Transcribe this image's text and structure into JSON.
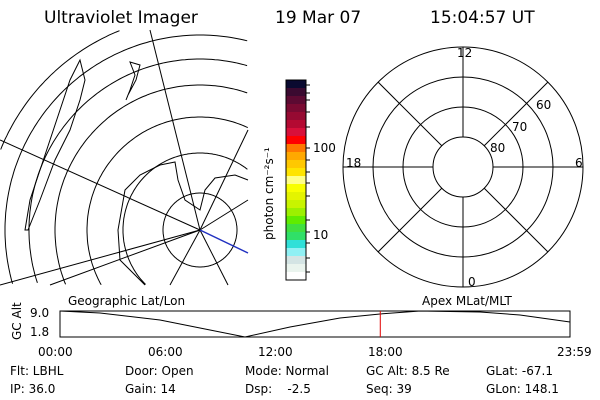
{
  "header": {
    "title": "Ultraviolet Imager",
    "date": "19 Mar 07",
    "time": "15:04:57 UT"
  },
  "colorbar": {
    "label": "photon cm⁻²s⁻¹",
    "ticks": [
      "100",
      "10"
    ],
    "colors": [
      "#0a0a30",
      "#3a0a30",
      "#5c0a32",
      "#7a0a32",
      "#960a32",
      "#b40a32",
      "#d8103a",
      "#ff0000",
      "#ff7800",
      "#ffa800",
      "#ffc800",
      "#ffe400",
      "#ffff88",
      "#f8ff00",
      "#e4f400",
      "#c8f400",
      "#9cf000",
      "#60ec00",
      "#40e040",
      "#30e068",
      "#30e0d8",
      "#90f0f4",
      "#d4e4e4",
      "#eaf4ee",
      "#ffffff"
    ]
  },
  "polar": {
    "mlt_labels": [
      "12",
      "18",
      "6",
      "0"
    ],
    "lat_labels": [
      "60",
      "70",
      "80"
    ]
  },
  "timeline": {
    "left_label": "Geographic Lat/Lon",
    "right_label": "Apex MLat/MLT",
    "axis_label": "GC Alt",
    "y_ticks": [
      "9.0",
      "1.8"
    ],
    "x_ticks": [
      "00:00",
      "06:00",
      "12:00",
      "18:00",
      "23:59"
    ],
    "current_time_fraction": 0.628,
    "marker_color": "#e00000"
  },
  "status": {
    "filter": "Flt: LBHL",
    "ip": "IP: 36.0",
    "door": "Door: Open",
    "gain": "Gain: 14",
    "mode": "Mode: Normal",
    "dsp": "Dsp:    -2.5",
    "gc_alt": "GC Alt: 8.5 Re",
    "seq": "Seq: 39",
    "glat": "GLat: -67.1",
    "glon": "GLon: 148.1"
  }
}
